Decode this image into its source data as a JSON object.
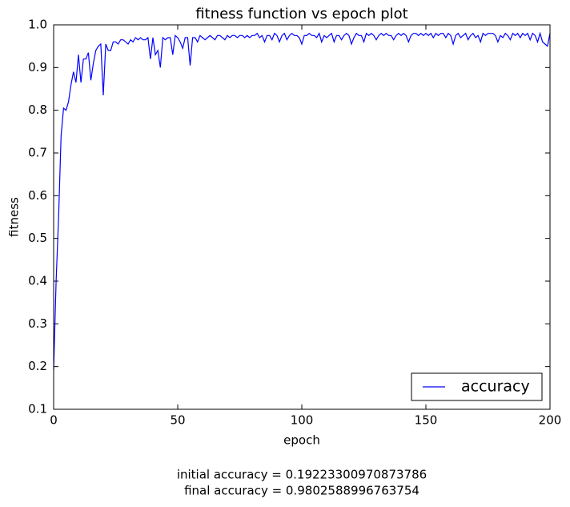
{
  "chart_data": {
    "type": "line",
    "title": "fitness function vs epoch plot",
    "xlabel": "epoch",
    "ylabel": "fitness",
    "annotations": [
      "initial accuracy = 0.19223300970873786",
      "final accuracy = 0.9802588996763754"
    ],
    "xlim": [
      0,
      200
    ],
    "xticks": [
      0,
      50,
      100,
      150,
      200
    ],
    "ylim": [
      0.1,
      1
    ],
    "yticks": [
      0.1,
      0.2,
      0.3,
      0.4,
      0.5,
      0.6,
      0.7,
      0.8,
      0.9,
      {
        "value": 1,
        "label": "1.0"
      }
    ],
    "legend": "lower right",
    "x": [
      0,
      1,
      2,
      3,
      4,
      5,
      6,
      7,
      8,
      9,
      10,
      11,
      12,
      13,
      14,
      15,
      16,
      17,
      18,
      19,
      20,
      21,
      22,
      23,
      24,
      25,
      26,
      27,
      28,
      29,
      30,
      31,
      32,
      33,
      34,
      35,
      36,
      37,
      38,
      39,
      40,
      41,
      42,
      43,
      44,
      45,
      46,
      47,
      48,
      49,
      50,
      51,
      52,
      53,
      54,
      55,
      56,
      57,
      58,
      59,
      60,
      61,
      62,
      63,
      64,
      65,
      66,
      67,
      68,
      69,
      70,
      71,
      72,
      73,
      74,
      75,
      76,
      77,
      78,
      79,
      80,
      81,
      82,
      83,
      84,
      85,
      86,
      87,
      88,
      89,
      90,
      91,
      92,
      93,
      94,
      95,
      96,
      97,
      98,
      99,
      100,
      101,
      102,
      103,
      104,
      105,
      106,
      107,
      108,
      109,
      110,
      111,
      112,
      113,
      114,
      115,
      116,
      117,
      118,
      119,
      120,
      121,
      122,
      123,
      124,
      125,
      126,
      127,
      128,
      129,
      130,
      131,
      132,
      133,
      134,
      135,
      136,
      137,
      138,
      139,
      140,
      141,
      142,
      143,
      144,
      145,
      146,
      147,
      148,
      149,
      150,
      151,
      152,
      153,
      154,
      155,
      156,
      157,
      158,
      159,
      160,
      161,
      162,
      163,
      164,
      165,
      166,
      167,
      168,
      169,
      170,
      171,
      172,
      173,
      174,
      175,
      176,
      177,
      178,
      179,
      180,
      181,
      182,
      183,
      184,
      185,
      186,
      187,
      188,
      189,
      190,
      191,
      192,
      193,
      194,
      195,
      196,
      197,
      198,
      199,
      200
    ],
    "series": [
      {
        "name": "accuracy",
        "color": "#0000ff",
        "values": [
          0.19223300970873786,
          0.4,
          0.55,
          0.74,
          0.805,
          0.8,
          0.82,
          0.86,
          0.89,
          0.865,
          0.93,
          0.865,
          0.92,
          0.92,
          0.935,
          0.87,
          0.91,
          0.94,
          0.95,
          0.955,
          0.835,
          0.955,
          0.94,
          0.94,
          0.96,
          0.96,
          0.955,
          0.965,
          0.965,
          0.96,
          0.955,
          0.965,
          0.96,
          0.97,
          0.965,
          0.97,
          0.965,
          0.965,
          0.97,
          0.92,
          0.97,
          0.93,
          0.94,
          0.9,
          0.97,
          0.965,
          0.97,
          0.97,
          0.93,
          0.975,
          0.97,
          0.96,
          0.945,
          0.97,
          0.97,
          0.905,
          0.97,
          0.97,
          0.96,
          0.975,
          0.97,
          0.965,
          0.97,
          0.975,
          0.97,
          0.965,
          0.975,
          0.975,
          0.97,
          0.965,
          0.975,
          0.97,
          0.975,
          0.975,
          0.97,
          0.975,
          0.975,
          0.97,
          0.975,
          0.97,
          0.975,
          0.975,
          0.98,
          0.97,
          0.975,
          0.96,
          0.975,
          0.975,
          0.965,
          0.98,
          0.975,
          0.96,
          0.975,
          0.98,
          0.965,
          0.975,
          0.98,
          0.975,
          0.975,
          0.97,
          0.955,
          0.975,
          0.975,
          0.98,
          0.975,
          0.975,
          0.97,
          0.98,
          0.96,
          0.975,
          0.97,
          0.975,
          0.98,
          0.96,
          0.975,
          0.975,
          0.965,
          0.975,
          0.98,
          0.975,
          0.955,
          0.97,
          0.98,
          0.975,
          0.975,
          0.96,
          0.98,
          0.975,
          0.98,
          0.975,
          0.965,
          0.975,
          0.98,
          0.975,
          0.98,
          0.975,
          0.975,
          0.965,
          0.975,
          0.98,
          0.975,
          0.98,
          0.975,
          0.96,
          0.975,
          0.98,
          0.98,
          0.975,
          0.98,
          0.975,
          0.98,
          0.975,
          0.98,
          0.97,
          0.98,
          0.975,
          0.98,
          0.98,
          0.97,
          0.98,
          0.975,
          0.955,
          0.975,
          0.98,
          0.97,
          0.975,
          0.98,
          0.965,
          0.975,
          0.98,
          0.97,
          0.975,
          0.96,
          0.98,
          0.975,
          0.98,
          0.98,
          0.98,
          0.975,
          0.96,
          0.975,
          0.97,
          0.98,
          0.975,
          0.965,
          0.98,
          0.975,
          0.98,
          0.97,
          0.98,
          0.975,
          0.98,
          0.965,
          0.98,
          0.975,
          0.96,
          0.98,
          0.96,
          0.955,
          0.95,
          0.9802588996763754
        ]
      }
    ]
  }
}
